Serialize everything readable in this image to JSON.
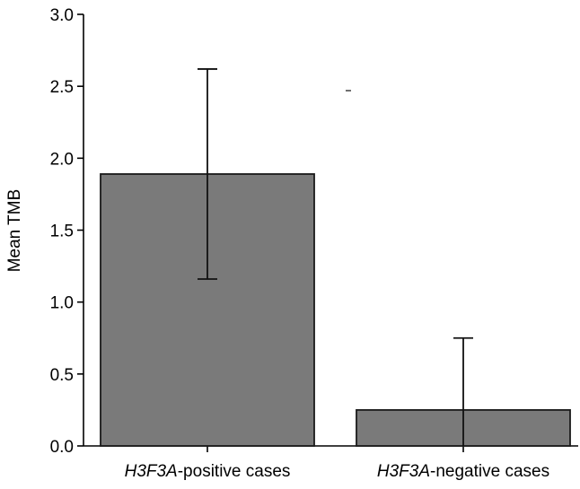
{
  "chart_data": {
    "type": "bar",
    "title": "",
    "xlabel": "",
    "ylabel": "Mean TMB",
    "ylim": [
      0,
      3.0
    ],
    "yticks": [
      "0.0",
      "0.5",
      "1.0",
      "1.5",
      "2.0",
      "2.5",
      "3.0"
    ],
    "categories": [
      {
        "italic": "H3F3A",
        "rest": "-positive cases"
      },
      {
        "italic": "H3F3A",
        "rest": "-negative cases"
      }
    ],
    "values": [
      1.89,
      0.25
    ],
    "error_low": [
      1.16,
      0.0
    ],
    "error_high": [
      2.62,
      0.75
    ],
    "grid": false,
    "bar_color": "#7a7a7a",
    "edge_color": "#1a1a1a"
  }
}
